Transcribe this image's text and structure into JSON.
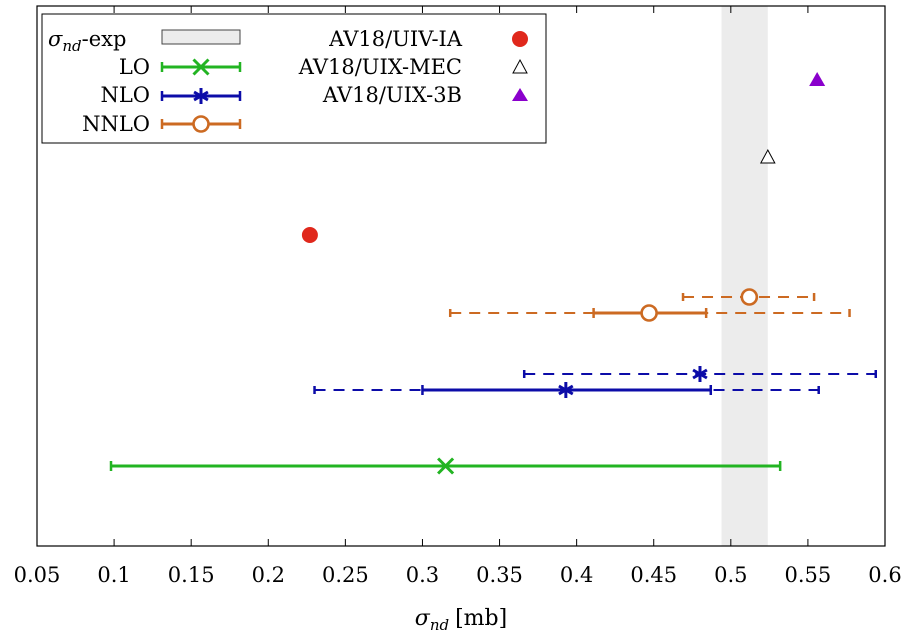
{
  "chart_data": {
    "type": "scatter",
    "xlabel": "σ",
    "xlabel_sub": "nd",
    "xlabel_unit": "[mb]",
    "xlim": [
      0.05,
      0.6
    ],
    "xticks": [
      "0.05",
      "0.1",
      "0.15",
      "0.2",
      "0.25",
      "0.3",
      "0.35",
      "0.4",
      "0.45",
      "0.5",
      "0.55",
      "0.6"
    ],
    "grid": false,
    "legend_position": "top-left",
    "experiment_band": {
      "x_min": 0.494,
      "x_max": 0.524,
      "color": "#ececec"
    },
    "legend": {
      "exp": {
        "label_sym": "σ",
        "label_sub": "nd",
        "label_rest": "-exp"
      },
      "lo": "LO",
      "nlo": "NLO",
      "nnlo": "NNLO",
      "ia": "AV18/UIV-IA",
      "mec": "AV18/UIX-MEC",
      "threeb": "AV18/UIX-3B"
    },
    "series": [
      {
        "name": "LO",
        "color": "#22b422",
        "marker": "x",
        "points": [
          {
            "x": 0.315,
            "lo": 0.098,
            "hi": 0.532,
            "dashed": false,
            "row": 1
          }
        ]
      },
      {
        "name": "NLO",
        "color": "#0c0ca8",
        "marker": "asterisk",
        "points": [
          {
            "x": 0.393,
            "lo": 0.3,
            "hi": 0.487,
            "dashed": false,
            "row": 2
          },
          {
            "x": 0.393,
            "lo": 0.23,
            "hi": 0.557,
            "dashed": true,
            "row": 2
          },
          {
            "x": 0.48,
            "lo": 0.366,
            "hi": 0.594,
            "dashed": true,
            "row": 3
          }
        ]
      },
      {
        "name": "NNLO",
        "color": "#cc6a22",
        "marker": "circle",
        "points": [
          {
            "x": 0.447,
            "lo": 0.411,
            "hi": 0.484,
            "dashed": false,
            "row": 4
          },
          {
            "x": 0.447,
            "lo": 0.318,
            "hi": 0.577,
            "dashed": true,
            "row": 4
          },
          {
            "x": 0.512,
            "lo": 0.469,
            "hi": 0.554,
            "dashed": true,
            "row": 5
          }
        ]
      },
      {
        "name": "AV18/UIV-IA",
        "color": "#e0281c",
        "marker": "filled-circle",
        "points": [
          {
            "x": 0.227,
            "row": 6
          }
        ]
      },
      {
        "name": "AV18/UIX-MEC",
        "color": "#000000",
        "marker": "open-triangle",
        "points": [
          {
            "x": 0.524,
            "row": 7
          }
        ]
      },
      {
        "name": "AV18/UIX-3B",
        "color": "#8a00cc",
        "marker": "filled-triangle",
        "points": [
          {
            "x": 0.556,
            "row": 8
          }
        ]
      }
    ]
  }
}
